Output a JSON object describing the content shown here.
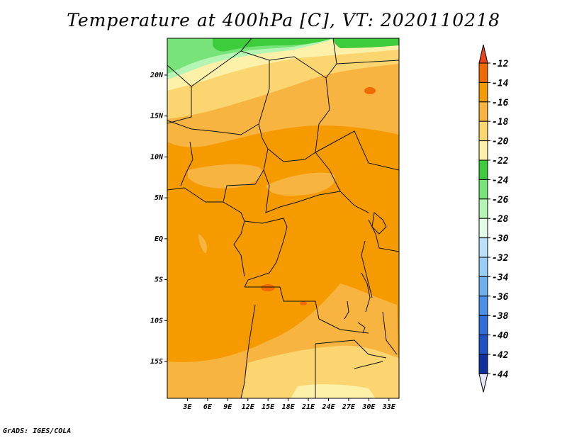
{
  "title": "Temperature at 400hPa [C], VT: 2020110218",
  "credit": "GrADS: IGES/COLA",
  "map": {
    "lon_labels": [
      "3E",
      "6E",
      "9E",
      "12E",
      "15E",
      "18E",
      "21E",
      "24E",
      "27E",
      "30E",
      "33E"
    ],
    "lat_labels": [
      "20N",
      "15N",
      "10N",
      "5N",
      "EQ",
      "5S",
      "10S",
      "15S"
    ],
    "lon_range": [
      0,
      34.5
    ],
    "lat_range": [
      -19.5,
      24.5
    ]
  },
  "colorbar": {
    "labels": [
      "-12",
      "-14",
      "-16",
      "-18",
      "-20",
      "-22",
      "-24",
      "-26",
      "-28",
      "-30",
      "-32",
      "-34",
      "-36",
      "-38",
      "-40",
      "-42",
      "-44"
    ],
    "colors": {
      "gt_-12": "#e8461a",
      "-14_-12": "#f06a00",
      "-16_-14": "#f59b00",
      "-18_-16": "#f8b440",
      "-20_-18": "#fbd56f",
      "-22_-20": "#fdf0a8",
      "-24_-22": "#3ccc3c",
      "-26_-24": "#78e378",
      "-28_-26": "#b4f5b4",
      "-30_-28": "#e2fce8",
      "-32_-30": "#bde0fa",
      "-34_-32": "#98cdf5",
      "-36_-34": "#6fb1ef",
      "-38_-36": "#4b90e8",
      "-40_-38": "#2f6fdd",
      "-42_-40": "#1f52c4",
      "-44_-42": "#0f2f9e",
      "lt_-44": "#08136e"
    }
  }
}
